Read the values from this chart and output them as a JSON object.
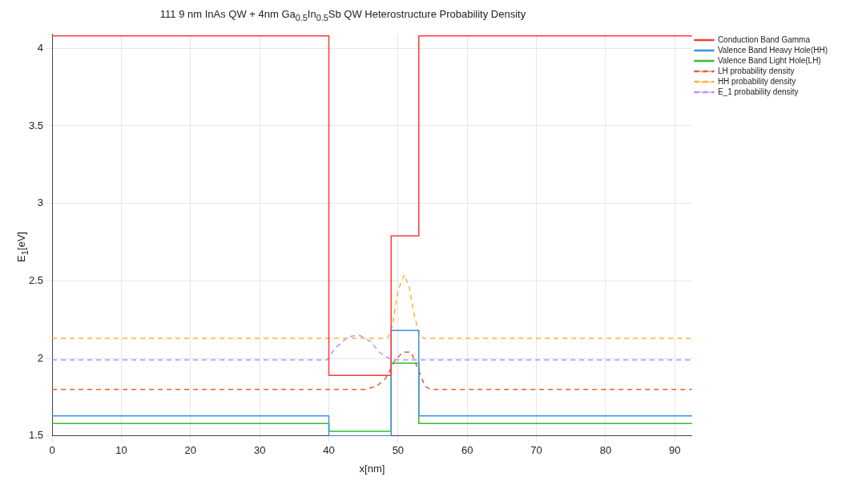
{
  "chart_data": {
    "type": "line",
    "title": "111 9 nm InAs QW + 4nm Ga$_{0.5}$In$_{0.5}$Sb QW Heterostructure Probability Density",
    "xlabel": "x[nm]",
    "ylabel": "E$_{1}$[eV]",
    "xlim": [
      0,
      92.5
    ],
    "ylim": [
      1.5,
      4.09
    ],
    "xticks": [
      0,
      10,
      20,
      30,
      40,
      50,
      60,
      70,
      80,
      90
    ],
    "yticks": [
      1.5,
      2,
      2.5,
      3,
      3.5,
      4
    ],
    "grid": true,
    "legend": "top right",
    "marker": "none",
    "series": [
      {
        "name": "Conduction Band Gamma",
        "color": "#ff3b3b",
        "line_style": "solid",
        "x": [
          0,
          40,
          40,
          49,
          49,
          53,
          53,
          92.5
        ],
        "values": [
          4.08,
          4.08,
          1.89,
          1.89,
          2.79,
          2.79,
          4.08,
          4.08
        ]
      },
      {
        "name": "Valence Band Heavy Hole(HH)",
        "color": "#3d8fe8",
        "line_style": "solid",
        "x": [
          0,
          40,
          40,
          49,
          49,
          53,
          53,
          92.5
        ],
        "values": [
          1.63,
          1.63,
          1.5,
          1.5,
          2.18,
          2.18,
          1.63,
          1.63
        ]
      },
      {
        "name": "Valence Band Light Hole(LH)",
        "color": "#2ec02e",
        "line_style": "solid",
        "x": [
          0,
          40,
          40,
          49,
          49,
          53,
          53,
          92.5
        ],
        "values": [
          1.58,
          1.58,
          1.53,
          1.53,
          1.97,
          1.97,
          1.58,
          1.58
        ]
      },
      {
        "name": "LH probability density",
        "color": "#d9662e",
        "line_style": "dashed",
        "x": [
          0,
          45.1,
          46.9,
          48.2,
          49.6,
          50.7,
          51.9,
          53.0,
          53.9,
          54.7,
          92.5
        ],
        "values": [
          1.8,
          1.8,
          1.82,
          1.87,
          1.99,
          2.04,
          2.04,
          1.92,
          1.82,
          1.8,
          1.8
        ]
      },
      {
        "name": "HH probability density",
        "color": "#ffb133",
        "line_style": "dashed",
        "x": [
          0,
          48.5,
          49.2,
          50.0,
          50.9,
          51.6,
          52.3,
          53.0,
          53.7,
          92.5
        ],
        "values": [
          2.13,
          2.13,
          2.21,
          2.44,
          2.54,
          2.46,
          2.29,
          2.16,
          2.13,
          2.13
        ]
      },
      {
        "name": "E_1 probability density",
        "color": "#c08cff",
        "line_style": "dashed",
        "x": [
          0,
          39.7,
          41.0,
          42.8,
          44.4,
          46.0,
          47.3,
          48.7,
          50.0,
          92.5
        ],
        "values": [
          1.99,
          1.99,
          2.07,
          2.14,
          2.15,
          2.11,
          2.04,
          2.0,
          1.99,
          1.99
        ]
      }
    ]
  }
}
